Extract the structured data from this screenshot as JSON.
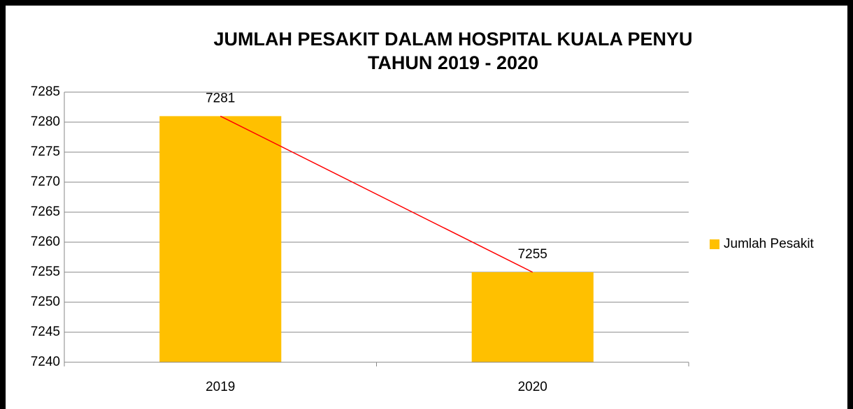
{
  "chart_data": {
    "type": "bar",
    "title": [
      "JUMLAH PESAKIT DALAM HOSPITAL KUALA PENYU",
      "TAHUN 2019 - 2020"
    ],
    "categories": [
      "2019",
      "2020"
    ],
    "series": [
      {
        "name": "Jumlah Pesakit",
        "color": "#ffc000",
        "values": [
          7281,
          7255
        ]
      }
    ],
    "connector_color": "#ff0000",
    "ylim": [
      7240,
      7285
    ],
    "yticks": [
      7240,
      7245,
      7250,
      7255,
      7260,
      7265,
      7270,
      7275,
      7280,
      7285
    ],
    "grid": true,
    "legend": "right"
  }
}
